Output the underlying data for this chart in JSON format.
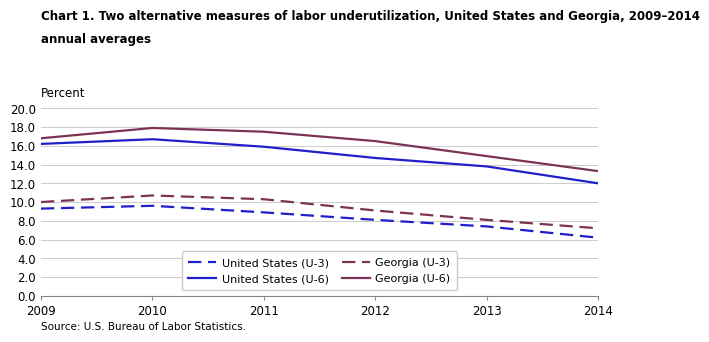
{
  "title_line1": "Chart 1. Two alternative measures of labor underutilization, United States and Georgia, 2009–2014",
  "title_line2": "annual averages",
  "ylabel": "Percent",
  "source": "Source: U.S. Bureau of Labor Statistics.",
  "years": [
    2009,
    2010,
    2011,
    2012,
    2013,
    2014
  ],
  "us_u3": [
    9.3,
    9.6,
    8.9,
    8.1,
    7.4,
    6.2
  ],
  "georgia_u3": [
    10.0,
    10.7,
    10.3,
    9.1,
    8.1,
    7.2
  ],
  "us_u6": [
    16.2,
    16.7,
    15.9,
    14.7,
    13.8,
    12.0
  ],
  "georgia_u6": [
    16.8,
    17.9,
    17.5,
    16.5,
    14.9,
    13.3
  ],
  "ylim": [
    0.0,
    20.0
  ],
  "yticks": [
    0.0,
    2.0,
    4.0,
    6.0,
    8.0,
    10.0,
    12.0,
    14.0,
    16.0,
    18.0,
    20.0
  ],
  "us_color": "#1F1FCC",
  "georgia_color": "#7B3355",
  "line_width": 1.6,
  "title_color": "#000000",
  "title_fontsize": 8.5,
  "label_fontsize": 8.5,
  "tick_fontsize": 8.5,
  "source_fontsize": 7.5,
  "legend_fontsize": 8.0
}
